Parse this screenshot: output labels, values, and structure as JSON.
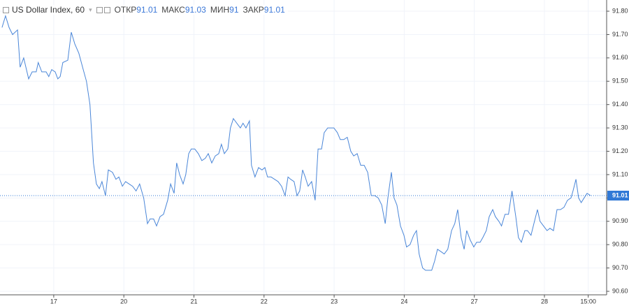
{
  "chart_data": {
    "type": "line",
    "title": "US Dollar Index, 60",
    "ohlc": [
      {
        "label": "ОТКР",
        "value": 91.01
      },
      {
        "label": "МАКС",
        "value": 91.03
      },
      {
        "label": "МИН",
        "value": 91.0
      },
      {
        "label": "ЗАКР",
        "value": 91.01
      }
    ],
    "color": "#4a86d8",
    "last_price": 91.01,
    "x": [
      -17.7,
      -16.5,
      -15.3,
      -14.1,
      -12.4,
      -11.5,
      -10.3,
      -8.6,
      -7.4,
      -6.0,
      -5.3,
      -4.1,
      -2.6,
      -1.7,
      -0.7,
      0.5,
      1.4,
      2.2,
      3.1,
      4.8,
      6.0,
      7.2,
      8.6,
      10.1,
      11.2,
      12.4,
      13.6,
      14.6,
      15.6,
      16.5,
      17.7,
      18.7,
      20.1,
      21.3,
      22.3,
      23.5,
      24.6,
      25.8,
      27.0,
      28.2,
      29.4,
      30.8,
      32.1,
      33.0,
      34.2,
      35.2,
      36.4,
      37.6,
      39.0,
      40.0,
      41.2,
      42.1,
      43.1,
      44.3,
      45.2,
      46.2,
      47.1,
      48.3,
      49.5,
      50.7,
      51.9,
      52.9,
      54.1,
      55.3,
      56.5,
      57.4,
      58.4,
      59.6,
      60.5,
      61.5,
      62.7,
      63.9,
      64.8,
      65.8,
      67.0,
      67.7,
      68.9,
      70.1,
      71.3,
      72.3,
      73.2,
      74.4,
      75.6,
      76.8,
      78.0,
      79.2,
      80.2,
      81.1,
      82.3,
      83.3,
      84.2,
      85.2,
      86.1,
      87.1,
      88.3,
      89.5,
      90.5,
      91.7,
      92.6,
      93.8,
      94.8,
      95.9,
      97.1,
      98.1,
      99.3,
      100.5,
      101.7,
      102.7,
      103.9,
      105.1,
      106.3,
      107.5,
      108.7,
      109.9,
      111.1,
      112.3,
      113.5,
      114.4,
      115.6,
      116.5,
      117.5,
      118.7,
      119.9,
      120.8,
      122.0,
      123.2,
      124.2,
      125.1,
      126.3,
      127.3,
      128.5,
      129.4,
      130.4,
      131.4,
      132.6,
      133.7,
      134.9,
      136.2,
      137.3,
      138.3,
      139.5,
      140.5,
      141.4,
      142.6,
      143.8,
      144.8,
      146.0,
      146.9,
      148.1,
      149.1,
      150.3,
      151.2,
      152.4,
      153.3,
      154.5,
      155.7,
      156.9,
      158.2,
      159.1,
      160.1,
      161.3,
      162.2,
      163.4,
      164.4,
      165.6,
      166.5,
      167.7,
      168.9,
      169.9,
      171.1,
      172.3,
      173.5,
      174.7,
      175.9,
      177.1,
      177.8,
      178.8,
      179.7,
      180.6,
      181.6,
      182.6,
      183.8
    ],
    "values": [
      91.73,
      91.78,
      91.73,
      91.7,
      91.72,
      91.56,
      91.6,
      91.51,
      91.54,
      91.54,
      91.58,
      91.54,
      91.54,
      91.52,
      91.55,
      91.54,
      91.51,
      91.52,
      91.58,
      91.59,
      91.71,
      91.66,
      91.62,
      91.55,
      91.5,
      91.4,
      91.15,
      91.06,
      91.04,
      91.07,
      91.01,
      91.12,
      91.11,
      91.08,
      91.09,
      91.05,
      91.07,
      91.06,
      91.05,
      91.03,
      91.06,
      91.0,
      90.89,
      90.91,
      90.91,
      90.88,
      90.92,
      90.93,
      90.99,
      91.06,
      91.02,
      91.15,
      91.1,
      91.06,
      91.1,
      91.19,
      91.21,
      91.21,
      91.19,
      91.16,
      91.17,
      91.19,
      91.15,
      91.18,
      91.19,
      91.23,
      91.19,
      91.21,
      91.3,
      91.34,
      91.32,
      91.3,
      91.32,
      91.3,
      91.33,
      91.14,
      91.09,
      91.13,
      91.12,
      91.13,
      91.09,
      91.09,
      91.08,
      91.07,
      91.05,
      91.01,
      91.09,
      91.08,
      91.07,
      91.01,
      91.03,
      91.12,
      91.09,
      91.05,
      91.07,
      90.99,
      91.21,
      91.21,
      91.28,
      91.3,
      91.3,
      91.3,
      91.28,
      91.25,
      91.25,
      91.26,
      91.2,
      91.18,
      91.19,
      91.14,
      91.14,
      91.11,
      91.01,
      91.01,
      91.0,
      90.97,
      90.89,
      91.0,
      91.11,
      91.0,
      90.97,
      90.88,
      90.84,
      90.79,
      90.8,
      90.84,
      90.86,
      90.76,
      90.7,
      90.69,
      90.69,
      90.69,
      90.73,
      90.78,
      90.77,
      90.76,
      90.78,
      90.86,
      90.89,
      90.95,
      90.83,
      90.78,
      90.86,
      90.82,
      90.79,
      90.81,
      90.81,
      90.83,
      90.86,
      90.92,
      90.95,
      90.92,
      90.9,
      90.88,
      90.93,
      90.93,
      91.03,
      90.92,
      90.83,
      90.81,
      90.86,
      90.86,
      90.84,
      90.89,
      90.95,
      90.9,
      90.88,
      90.86,
      90.87,
      90.86,
      90.95,
      90.95,
      90.96,
      90.99,
      91.0,
      91.03,
      91.08,
      91.0,
      90.98,
      91.0,
      91.02,
      91.01
    ],
    "xlim": [
      -18.4,
      189.3
    ],
    "xticks": [
      {
        "value": 0,
        "label": "17"
      },
      {
        "value": 24,
        "label": "20"
      },
      {
        "value": 48,
        "label": "21"
      },
      {
        "value": 72,
        "label": "22"
      },
      {
        "value": 96,
        "label": "23"
      },
      {
        "value": 120,
        "label": "24"
      },
      {
        "value": 144,
        "label": "27"
      },
      {
        "value": 168,
        "label": "28"
      },
      {
        "value": 183,
        "label": "15:00"
      }
    ],
    "ylim": [
      90.585,
      91.848
    ],
    "yticks": [
      {
        "value": 90.6,
        "label": "90.60"
      },
      {
        "value": 90.7,
        "label": "90.70"
      },
      {
        "value": 90.8,
        "label": "90.80"
      },
      {
        "value": 90.9,
        "label": "90.90"
      },
      {
        "value": 91.0,
        "label": "91.00"
      },
      {
        "value": 91.1,
        "label": "91.10"
      },
      {
        "value": 91.2,
        "label": "91.20"
      },
      {
        "value": 91.3,
        "label": "91.30"
      },
      {
        "value": 91.4,
        "label": "91.40"
      },
      {
        "value": 91.5,
        "label": "91.50"
      },
      {
        "value": 91.6,
        "label": "91.60"
      },
      {
        "value": 91.7,
        "label": "91.70"
      },
      {
        "value": 91.8,
        "label": "91.80"
      }
    ],
    "grid": true
  }
}
